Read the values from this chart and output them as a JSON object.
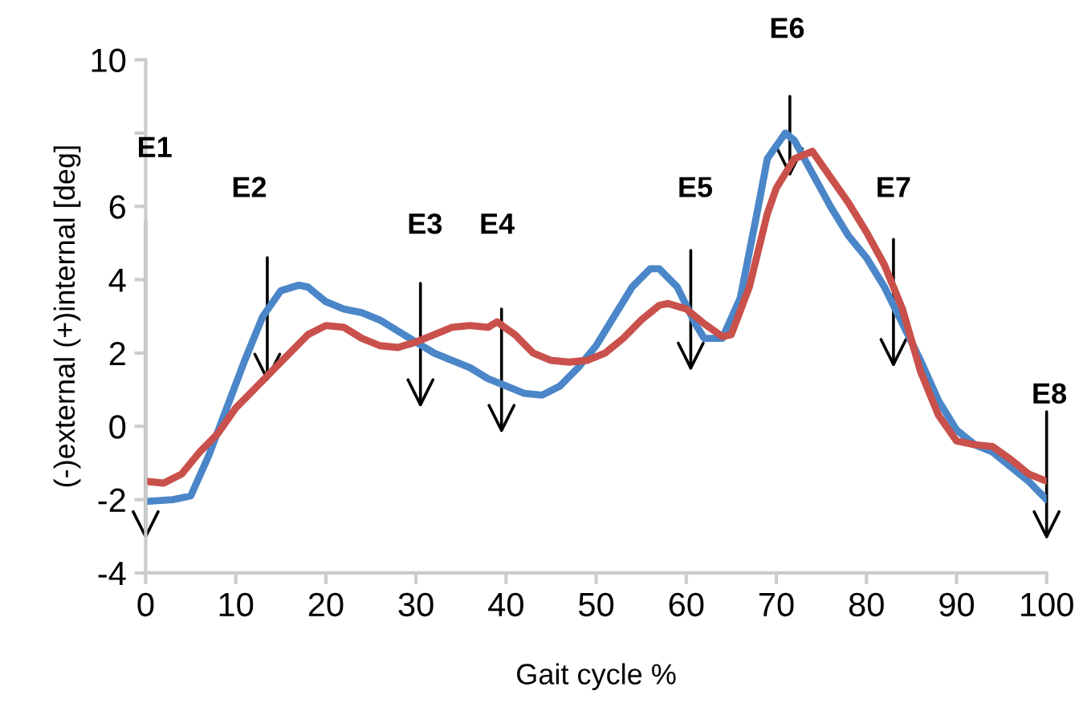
{
  "chart_data": {
    "type": "line",
    "xlabel": "Gait cycle %",
    "ylabel": "(-)external (+)internal [deg]",
    "xlim": [
      0,
      100
    ],
    "xticks": [
      0,
      10,
      20,
      30,
      40,
      50,
      60,
      70,
      80,
      90,
      100
    ],
    "ylim": [
      -4,
      10
    ],
    "yticks": [
      -4,
      -2,
      0,
      2,
      4,
      6,
      {
        "value": 8,
        "label": null
      },
      10
    ],
    "grid": false,
    "series": [
      {
        "color": "#4a86c8",
        "x": [
          0,
          3,
          5,
          7,
          9,
          11,
          13,
          15,
          17,
          18,
          20,
          22,
          24,
          26,
          28,
          30,
          32,
          34,
          36,
          38,
          40,
          42,
          44,
          46,
          48,
          50,
          52,
          54,
          56,
          57,
          59,
          61,
          62,
          64,
          66,
          68,
          69,
          71,
          72,
          74,
          76,
          78,
          80,
          82,
          84,
          86,
          88,
          90,
          92,
          94,
          96,
          98,
          100
        ],
        "values": [
          -2.05,
          -2.0,
          -1.9,
          -0.8,
          0.5,
          1.8,
          3.0,
          3.7,
          3.85,
          3.8,
          3.4,
          3.2,
          3.1,
          2.9,
          2.6,
          2.3,
          2.0,
          1.8,
          1.6,
          1.3,
          1.1,
          0.9,
          0.85,
          1.1,
          1.6,
          2.2,
          3.0,
          3.8,
          4.3,
          4.3,
          3.8,
          2.8,
          2.4,
          2.4,
          3.5,
          6.0,
          7.3,
          8.0,
          7.8,
          6.9,
          6.0,
          5.2,
          4.6,
          3.8,
          2.8,
          1.8,
          0.7,
          -0.1,
          -0.5,
          -0.7,
          -1.1,
          -1.5,
          -2.0
        ]
      },
      {
        "color": "#c9504b",
        "x": [
          0,
          2,
          4,
          6,
          8,
          10,
          12,
          14,
          16,
          18,
          20,
          22,
          24,
          26,
          28,
          30,
          32,
          34,
          36,
          38,
          39,
          41,
          43,
          45,
          47,
          49,
          51,
          53,
          55,
          57,
          58,
          60,
          62,
          64,
          65,
          67,
          69,
          70,
          72,
          74,
          76,
          78,
          80,
          82,
          84,
          86,
          88,
          90,
          92,
          94,
          96,
          98,
          100
        ],
        "values": [
          -1.5,
          -1.55,
          -1.3,
          -0.7,
          -0.2,
          0.5,
          1.0,
          1.5,
          2.0,
          2.5,
          2.75,
          2.7,
          2.4,
          2.2,
          2.15,
          2.3,
          2.5,
          2.7,
          2.75,
          2.7,
          2.85,
          2.5,
          2.0,
          1.8,
          1.75,
          1.8,
          2.0,
          2.4,
          2.9,
          3.3,
          3.35,
          3.2,
          2.8,
          2.45,
          2.5,
          3.8,
          5.8,
          6.5,
          7.3,
          7.5,
          6.8,
          6.1,
          5.3,
          4.4,
          3.2,
          1.5,
          0.3,
          -0.4,
          -0.5,
          -0.55,
          -0.9,
          -1.3,
          -1.5
        ]
      }
    ],
    "annotations": [
      "E1",
      "E2",
      "E3",
      "E4",
      "E5",
      "E6",
      "E7",
      "E8"
    ]
  }
}
